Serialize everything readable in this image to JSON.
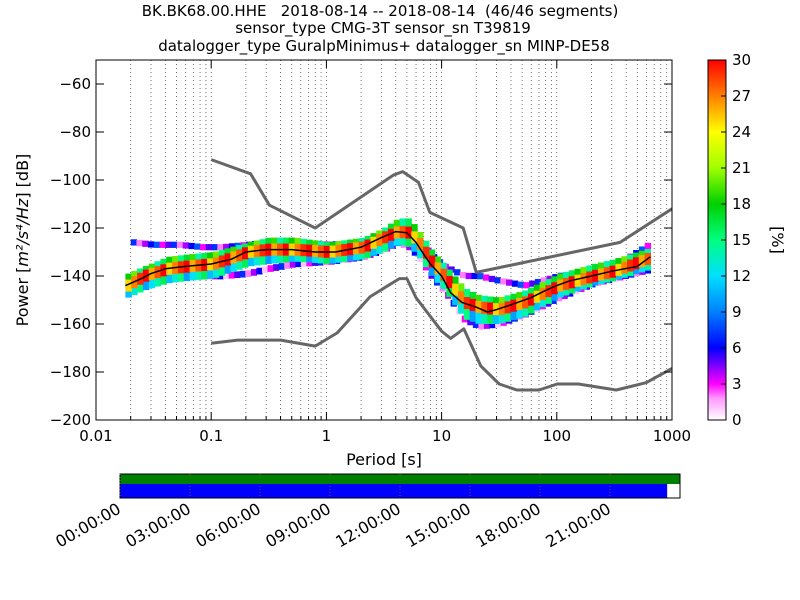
{
  "chart_data": {
    "type": "heatmap",
    "title_lines": [
      "BK.BK68.00.HHE   2018-08-14 -- 2018-08-14  (46/46 segments)",
      "sensor_type CMG-3T sensor_sn T39819",
      "datalogger_type GuralpMinimus+ datalogger_sn MINP-DE58"
    ],
    "xlabel": "Period [s]",
    "ylabel_prefix": "Power [",
    "ylabel_math": "m²/s⁴/Hz",
    "ylabel_suffix": "] [dB]",
    "x_scale": "log",
    "xlim": [
      0.01,
      1000
    ],
    "ylim": [
      -200,
      -50
    ],
    "x_ticks": [
      {
        "value": 0.01,
        "label": "0.01"
      },
      {
        "value": 0.1,
        "label": "0.1"
      },
      {
        "value": 1,
        "label": "1"
      },
      {
        "value": 10,
        "label": "10"
      },
      {
        "value": 100,
        "label": "100"
      },
      {
        "value": 1000,
        "label": "1000"
      }
    ],
    "y_ticks": [
      {
        "value": -60,
        "label": "−60"
      },
      {
        "value": -80,
        "label": "−80"
      },
      {
        "value": -100,
        "label": "−100"
      },
      {
        "value": -120,
        "label": "−120"
      },
      {
        "value": -140,
        "label": "−140"
      },
      {
        "value": -160,
        "label": "−160"
      },
      {
        "value": -180,
        "label": "−180"
      },
      {
        "value": -200,
        "label": "−200"
      }
    ],
    "grid": "dotted vertical",
    "colorbar": {
      "label": "[%]",
      "range": [
        0,
        30
      ],
      "ticks": [
        {
          "value": 0,
          "label": "0"
        },
        {
          "value": 3,
          "label": "3"
        },
        {
          "value": 6,
          "label": "6"
        },
        {
          "value": 9,
          "label": "9"
        },
        {
          "value": 12,
          "label": "12"
        },
        {
          "value": 15,
          "label": "15"
        },
        {
          "value": 18,
          "label": "18"
        },
        {
          "value": 21,
          "label": "21"
        },
        {
          "value": 24,
          "label": "24"
        },
        {
          "value": 27,
          "label": "27"
        },
        {
          "value": 30,
          "label": "30"
        }
      ]
    },
    "noise_model_color": "#666666",
    "high_noise_model": [
      [
        0.1,
        -91.5
      ],
      [
        0.22,
        -97.4
      ],
      [
        0.32,
        -110.5
      ],
      [
        0.8,
        -120
      ],
      [
        3.8,
        -98
      ],
      [
        4.6,
        -96.5
      ],
      [
        6.3,
        -101
      ],
      [
        7.9,
        -113.5
      ],
      [
        15.4,
        -120
      ],
      [
        20,
        -138.5
      ],
      [
        354,
        -126
      ],
      [
        1000,
        -112
      ]
    ],
    "low_noise_model": [
      [
        0.1,
        -168
      ],
      [
        0.17,
        -166.7
      ],
      [
        0.4,
        -166.7
      ],
      [
        0.8,
        -169.2
      ],
      [
        1.24,
        -163.7
      ],
      [
        2.4,
        -148.6
      ],
      [
        4.3,
        -141.1
      ],
      [
        5,
        -141.1
      ],
      [
        6,
        -149
      ],
      [
        10,
        -163
      ],
      [
        12,
        -166
      ],
      [
        15.6,
        -162
      ],
      [
        21.9,
        -177.5
      ],
      [
        31.6,
        -185
      ],
      [
        45,
        -187.5
      ],
      [
        70,
        -187.5
      ],
      [
        101,
        -185
      ],
      [
        154,
        -185
      ],
      [
        328,
        -187.5
      ],
      [
        600,
        -184.4
      ],
      [
        1000,
        -178.5
      ]
    ],
    "mode_line_color": "#000000",
    "mode_line": [
      [
        0.018,
        -144
      ],
      [
        0.025,
        -141
      ],
      [
        0.03,
        -139
      ],
      [
        0.04,
        -137
      ],
      [
        0.06,
        -136
      ],
      [
        0.1,
        -135
      ],
      [
        0.15,
        -133
      ],
      [
        0.2,
        -130
      ],
      [
        0.3,
        -129
      ],
      [
        0.5,
        -129
      ],
      [
        0.8,
        -130
      ],
      [
        1.2,
        -130
      ],
      [
        2,
        -128
      ],
      [
        3,
        -124
      ],
      [
        4,
        -121.5
      ],
      [
        5,
        -122
      ],
      [
        6,
        -126
      ],
      [
        7,
        -131
      ],
      [
        8,
        -135
      ],
      [
        10,
        -140
      ],
      [
        12,
        -147
      ],
      [
        15,
        -151
      ],
      [
        20,
        -153
      ],
      [
        25,
        -155
      ],
      [
        30,
        -154
      ],
      [
        40,
        -152
      ],
      [
        60,
        -149
      ],
      [
        80,
        -146
      ],
      [
        100,
        -144
      ],
      [
        130,
        -142
      ],
      [
        200,
        -140
      ],
      [
        300,
        -138
      ],
      [
        500,
        -136
      ],
      [
        650,
        -132
      ]
    ],
    "density_bands": [
      {
        "x": [
          0.018,
          0.025,
          0.04,
          0.06,
          0.1,
          0.2,
          0.3,
          0.5,
          1,
          2,
          3,
          4,
          5,
          6,
          8,
          10,
          15,
          20,
          30,
          50,
          100,
          200,
          300,
          650
        ],
        "y": [
          -144,
          -140,
          -137,
          -136,
          -135,
          -130,
          -129,
          -129,
          -130,
          -128,
          -124,
          -121.5,
          -122,
          -126,
          -135,
          -140,
          -151,
          -153,
          -154,
          -151,
          -144,
          -140,
          -138,
          -132
        ],
        "half_width": 2.5,
        "percent": 28
      },
      {
        "x": [
          0.018,
          0.025,
          0.04,
          0.06,
          0.1,
          0.2,
          0.3,
          0.5,
          1,
          2,
          3,
          4,
          5,
          6,
          8,
          10,
          15,
          20,
          30,
          50,
          100,
          200,
          300,
          650
        ],
        "y": [
          -142,
          -139,
          -135,
          -134,
          -133,
          -129,
          -127,
          -127,
          -129,
          -127,
          -123,
          -119,
          -119,
          -124,
          -133,
          -138,
          -148,
          -151,
          -152,
          -149,
          -142,
          -138,
          -136,
          -131
        ],
        "half_width": 3,
        "percent": 17
      },
      {
        "x": [
          0.018,
          0.025,
          0.04,
          0.06,
          0.1,
          0.2,
          0.3,
          0.5,
          1,
          2,
          3,
          4,
          5,
          6,
          8,
          10,
          15,
          20,
          30,
          50,
          100,
          200,
          300,
          650
        ],
        "y": [
          -146,
          -143,
          -140,
          -139,
          -138,
          -133,
          -132,
          -131,
          -132,
          -130,
          -127,
          -124,
          -125,
          -129,
          -138,
          -143,
          -155,
          -157,
          -157,
          -154,
          -146,
          -141,
          -139,
          -134
        ],
        "half_width": 3,
        "percent": 13
      },
      {
        "x": [
          0.02,
          0.03,
          0.05,
          0.08,
          0.12,
          0.2,
          0.3,
          0.5,
          1,
          2,
          3,
          4,
          5,
          6,
          8,
          10,
          15,
          20,
          30,
          50,
          100,
          200,
          300,
          650
        ],
        "y": [
          -126,
          -127,
          -127,
          -128,
          -128,
          -127,
          -126,
          -126,
          -127,
          -126,
          -124,
          -121,
          -121,
          -125,
          -132,
          -136,
          -140,
          -140,
          -142,
          -144,
          -140,
          -138,
          -136,
          -126
        ],
        "half_width": 1.3,
        "percent": 5
      },
      {
        "x": [
          0.03,
          0.05,
          0.08,
          0.12,
          0.2,
          0.3,
          0.5,
          1,
          2,
          3,
          4,
          5,
          6,
          8,
          10,
          15,
          20,
          30,
          50,
          100,
          200,
          300,
          650
        ],
        "y": [
          -139,
          -140,
          -140,
          -140,
          -139,
          -137,
          -135,
          -134,
          -132,
          -129,
          -126,
          -128,
          -132,
          -141,
          -146,
          -158,
          -161,
          -160,
          -156,
          -149,
          -143,
          -141,
          -137
        ],
        "half_width": 1.4,
        "percent": 4
      }
    ],
    "time_axis": {
      "labels": [
        "00:00:00",
        "03:00:00",
        "06:00:00",
        "09:00:00",
        "12:00:00",
        "15:00:00",
        "18:00:00",
        "21:00:00"
      ],
      "range_hours": [
        0,
        24
      ],
      "coverage_green": [
        [
          0,
          24
        ]
      ],
      "coverage_blue": [
        [
          0,
          23.45
        ]
      ],
      "green_color": "#008000",
      "blue_color": "#0000ff"
    }
  }
}
